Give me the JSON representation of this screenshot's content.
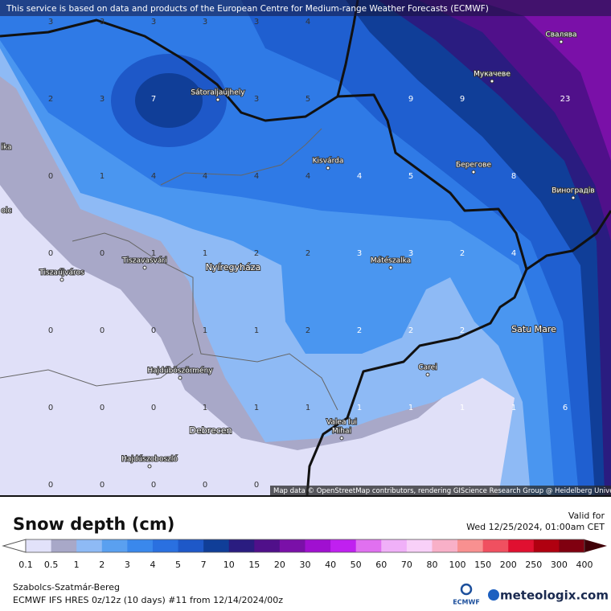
{
  "header": {
    "notice": "This service is based on data and products of the European Centre for Medium-range Weather Forecasts (ECMWF)"
  },
  "map": {
    "cities": [
      "Sátoraljaújhely",
      "Kisvárda",
      "Nyíregyháza",
      "Tiszavasvári",
      "Tiszaújváros",
      "Mátészalka",
      "Hajdúböszörmény",
      "Debrecen",
      "Hajdúszoboszló",
      "Carei",
      "Satu Mare",
      "Берегове",
      "Виноградів",
      "Мукачеве",
      "Свалява",
      "ika",
      "olc"
    ],
    "valea_lines": [
      "Valea lui",
      "Mihai"
    ],
    "grid": [
      [
        "3",
        "3",
        "3",
        "3",
        "3",
        "4",
        null,
        null,
        null,
        null,
        null
      ],
      [
        "2",
        "3",
        "7",
        null,
        "3",
        "5",
        null,
        "9",
        "9",
        null,
        "23"
      ],
      [
        "0",
        "1",
        "4",
        "4",
        "4",
        "4",
        "4",
        "5",
        null,
        "8",
        null
      ],
      [
        "0",
        "0",
        "1",
        "1",
        "2",
        "2",
        "3",
        "3",
        "2",
        "4",
        null
      ],
      [
        "0",
        "0",
        "0",
        "1",
        "1",
        "2",
        "2",
        "2",
        "2",
        null,
        null
      ],
      [
        "0",
        "0",
        "0",
        "1",
        "1",
        "1",
        "1",
        "1",
        "1",
        "1",
        "6"
      ],
      [
        "0",
        "0",
        "0",
        "0",
        "0",
        null,
        null,
        null,
        null,
        null,
        null
      ]
    ],
    "attribution": "Map data © OpenStreetMap contributors, rendering GIScience Research Group @ Heidelberg University"
  },
  "legend": {
    "title": "Snow depth (cm)",
    "ticks": [
      "0.1",
      "0.5",
      "1",
      "2",
      "3",
      "4",
      "5",
      "7",
      "10",
      "15",
      "20",
      "30",
      "40",
      "50",
      "60",
      "70",
      "80",
      "100",
      "150",
      "200",
      "250",
      "300",
      "400"
    ],
    "colors": [
      "#e2e2fa",
      "#a8a8c8",
      "#8ebaf5",
      "#5aa0f0",
      "#3a88ec",
      "#2a70e0",
      "#1e58c8",
      "#103e98",
      "#2a1c80",
      "#50108a",
      "#7a10a8",
      "#a010d0",
      "#c020f0",
      "#e070f0",
      "#f0b0f8",
      "#f8d0f8",
      "#f8b0c8",
      "#f89090",
      "#f05060",
      "#e01030",
      "#b00010",
      "#800010"
    ],
    "under_color": "#ffffff",
    "over_color": "#400008"
  },
  "valid": {
    "label": "Valid for",
    "time": "Wed 12/25/2024, 01:00am CET"
  },
  "footer": {
    "region": "Szabolcs-Szatmár-Bereg",
    "model": "ECMWF IFS HRES 0z/12z (10 days) #11 from  12/14/2024/00z",
    "ecmwf": "ECMWF",
    "brand": "meteologix.com"
  }
}
